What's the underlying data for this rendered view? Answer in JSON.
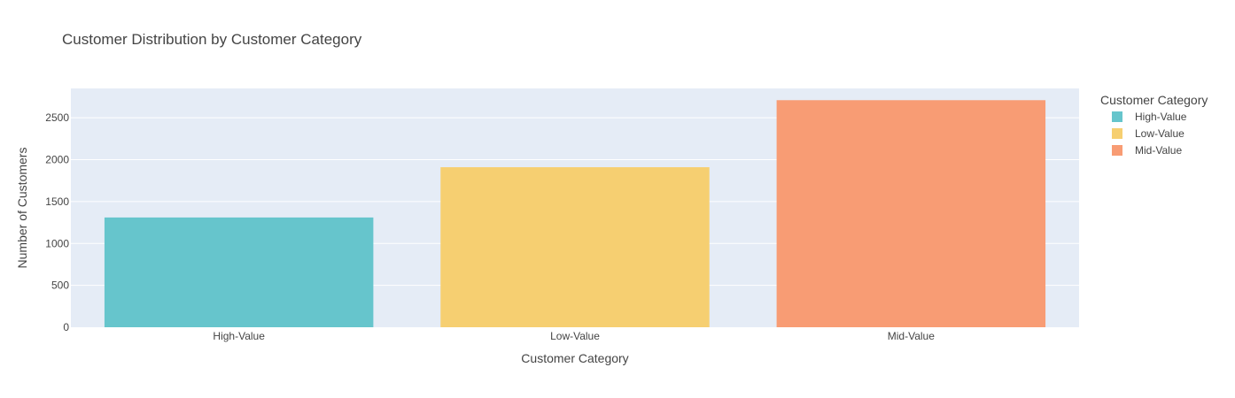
{
  "chart_data": {
    "type": "bar",
    "title": "Customer Distribution by Customer Category",
    "xlabel": "Customer Category",
    "ylabel": "Number of Customers",
    "categories": [
      "High-Value",
      "Low-Value",
      "Mid-Value"
    ],
    "values": [
      1310,
      1910,
      2710
    ],
    "colors": [
      "#66c5cc",
      "#f6cf71",
      "#f89c74"
    ],
    "ylim": [
      0,
      2850
    ],
    "yticks": [
      0,
      500,
      1000,
      1500,
      2000,
      2500
    ],
    "grid": true,
    "legend": {
      "title": "Customer Category",
      "placement": "right",
      "entries": [
        "High-Value",
        "Low-Value",
        "Mid-Value"
      ]
    },
    "plot_background": "#e5ecf6"
  }
}
